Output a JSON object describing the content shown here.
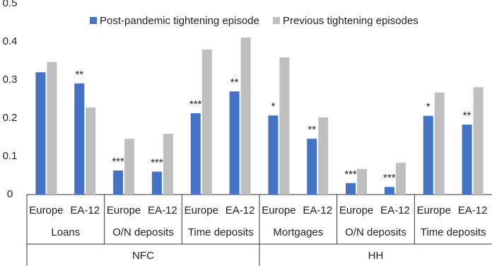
{
  "chart_data": {
    "type": "bar",
    "categories": [
      "Europe",
      "EA-12",
      "Europe",
      "EA-12",
      "Europe",
      "EA-12",
      "Europe",
      "EA-12",
      "Europe",
      "EA-12",
      "Europe",
      "EA-12"
    ],
    "category_groups": [
      "Loans",
      "O/N deposits",
      "Time deposits",
      "Mortgages",
      "O/N deposits",
      "Time deposits"
    ],
    "outer_groups": [
      "NFC",
      "HH"
    ],
    "series": [
      {
        "name": "Post-pandemic tightening episode",
        "color": "#4472c4",
        "values": [
          0.32,
          0.291,
          0.063,
          0.06,
          0.213,
          0.27,
          0.207,
          0.146,
          0.03,
          0.02,
          0.206,
          0.183
        ]
      },
      {
        "name": "Previous tightening episodes",
        "color": "#bfbfbf",
        "values": [
          0.347,
          0.228,
          0.146,
          0.159,
          0.38,
          0.411,
          0.359,
          0.202,
          0.067,
          0.083,
          0.267,
          0.281
        ]
      }
    ],
    "annotations": [
      null,
      "**",
      "***",
      "***",
      "***",
      "**",
      "*",
      "**",
      "***",
      "***",
      "*",
      "**"
    ],
    "ylim": [
      0,
      0.5
    ],
    "yticks": [
      0,
      0.1,
      0.2,
      0.3,
      0.4,
      0.5
    ],
    "grid": false,
    "legend": "top"
  }
}
